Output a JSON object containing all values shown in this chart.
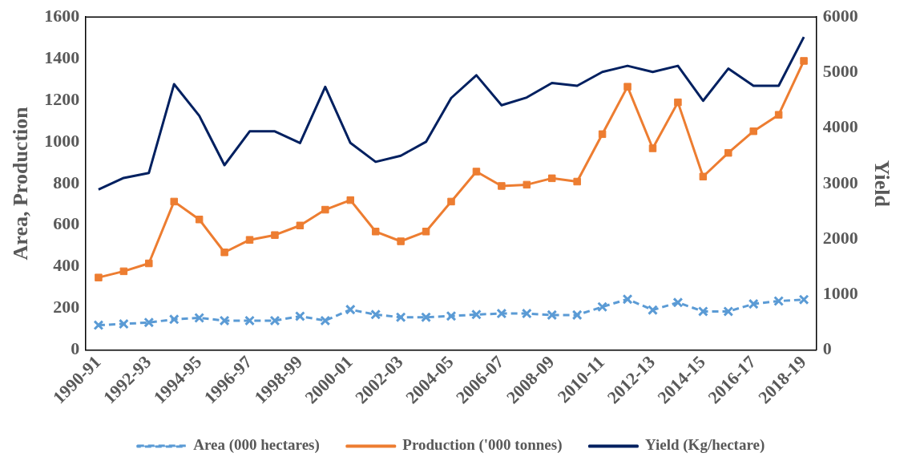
{
  "chart_data": {
    "type": "line",
    "ylabel": "Area, Production",
    "y2label": "Yield",
    "categories": [
      "1990-91",
      null,
      "1992-93",
      null,
      "1994-95",
      null,
      "1996-97",
      null,
      "1998-99",
      null,
      "2000-01",
      null,
      "2002-03",
      null,
      "2004-05",
      null,
      "2006-07",
      null,
      "2008-09",
      null,
      "2010-11",
      null,
      "2012-13",
      null,
      "2014-15",
      null,
      "2016-17",
      null,
      "2018-19"
    ],
    "series": [
      {
        "name": "Area (000 hectares)",
        "color": "#5b9bd5",
        "line_style": "dashed",
        "marker": "cross",
        "values": [
          119,
          125,
          132,
          147,
          154,
          141,
          141,
          141,
          162,
          141,
          194,
          170,
          157,
          157,
          163,
          170,
          175,
          175,
          168,
          168,
          207,
          244,
          192,
          228,
          185,
          185,
          221,
          235,
          242
        ]
      },
      {
        "name": "Production ('000 tonnes)",
        "color": "#ed7d31",
        "line_style": "solid",
        "marker": "square",
        "values": [
          348,
          378,
          416,
          713,
          627,
          469,
          529,
          552,
          598,
          674,
          720,
          569,
          522,
          569,
          713,
          857,
          788,
          794,
          825,
          809,
          1037,
          1265,
          969,
          1190,
          833,
          947,
          1051,
          1130,
          1389
        ]
      },
      {
        "name": "Yield (Kg/hectare)",
        "color": "#002060",
        "line_style": "solid",
        "marker": "none",
        "axis": "y2",
        "values": [
          2890,
          3100,
          3190,
          4790,
          4220,
          3330,
          3940,
          3940,
          3730,
          4740,
          3730,
          3390,
          3500,
          3750,
          4540,
          4950,
          4410,
          4550,
          4810,
          4760,
          5010,
          5120,
          5010,
          5120,
          4490,
          5070,
          4760,
          4760,
          5640
        ]
      }
    ],
    "ylim": [
      0,
      1600
    ],
    "yticks": [
      0,
      200,
      400,
      600,
      800,
      1000,
      1200,
      1400,
      1600
    ],
    "y2lim": [
      0,
      6000
    ],
    "y2ticks": [
      0,
      1000,
      2000,
      3000,
      4000,
      5000,
      6000
    ],
    "grid": false,
    "legend": "bottom"
  }
}
